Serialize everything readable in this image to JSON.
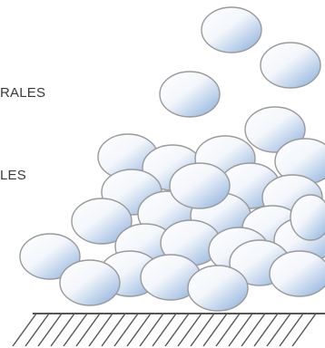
{
  "labels": {
    "top": "RALES",
    "bottom": "LES"
  },
  "colors": {
    "particle_fill_light": "#ffffff",
    "particle_fill_blue": "#8fb3de",
    "particle_stroke": "#9a9a9a",
    "ground_line": "#555555",
    "text": "#3a3a3a"
  },
  "icons": [
    "particle-icon",
    "hatched-ground-icon"
  ]
}
